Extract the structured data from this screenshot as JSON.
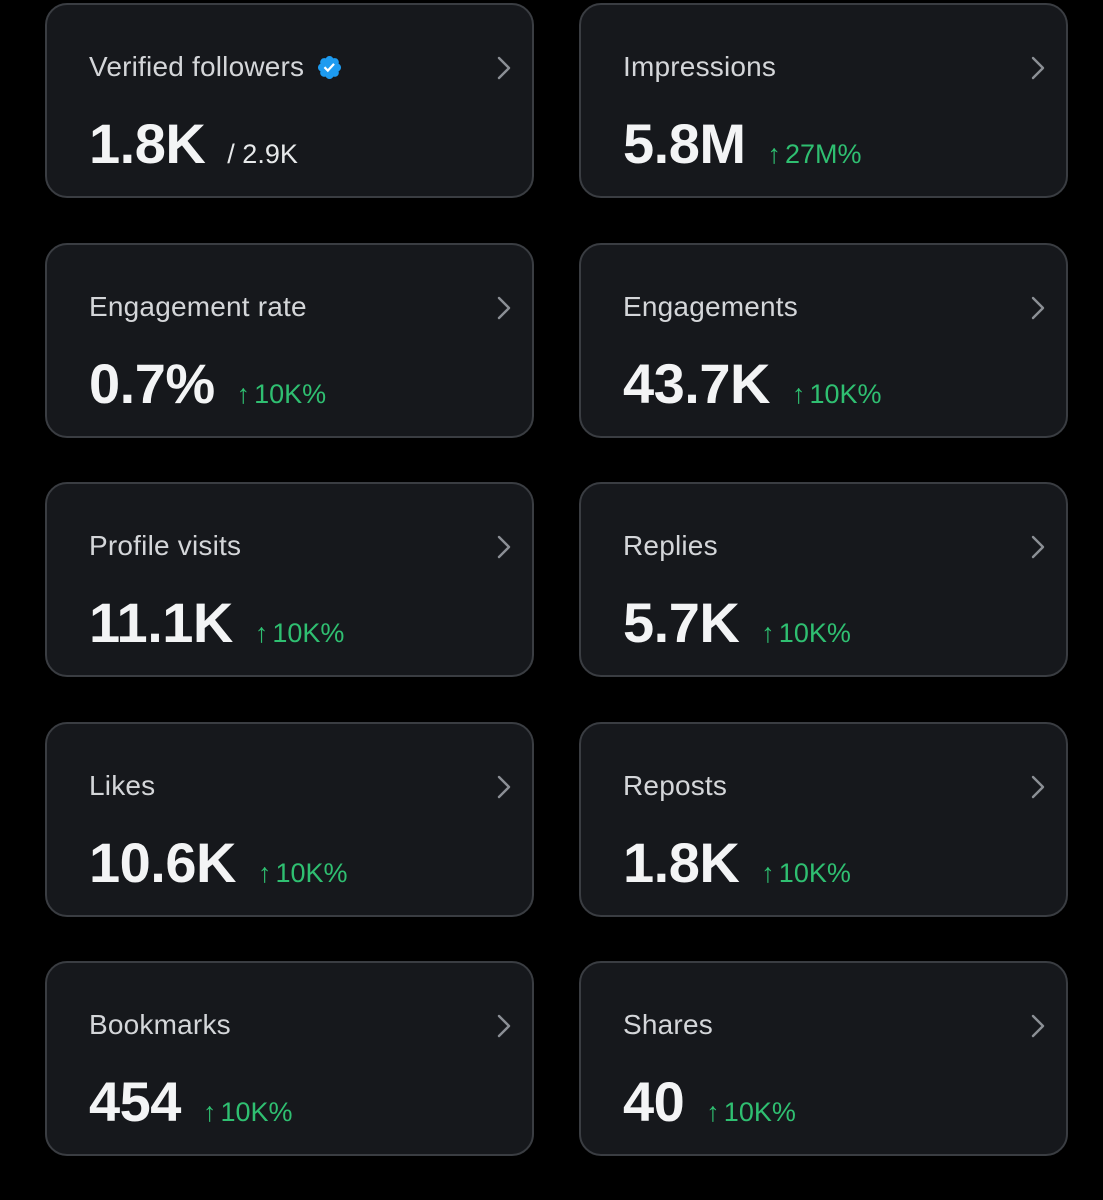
{
  "colors": {
    "background": "#000000",
    "card_background": "#16181c",
    "card_border": "#3a3d42",
    "positive_change": "#2fbf71",
    "verified_badge": "#1d9bf0"
  },
  "cards": [
    {
      "title": "Verified followers",
      "value": "1.8K",
      "secondary": "/ 2.9K",
      "has_verified_icon": true
    },
    {
      "title": "Impressions",
      "value": "5.8M",
      "change_arrow": "↑",
      "change": "27M%"
    },
    {
      "title": "Engagement rate",
      "value": "0.7%",
      "change_arrow": "↑",
      "change": "10K%"
    },
    {
      "title": "Engagements",
      "value": "43.7K",
      "change_arrow": "↑",
      "change": "10K%"
    },
    {
      "title": "Profile visits",
      "value": "11.1K",
      "change_arrow": "↑",
      "change": "10K%"
    },
    {
      "title": "Replies",
      "value": "5.7K",
      "change_arrow": "↑",
      "change": "10K%"
    },
    {
      "title": "Likes",
      "value": "10.6K",
      "change_arrow": "↑",
      "change": "10K%"
    },
    {
      "title": "Reposts",
      "value": "1.8K",
      "change_arrow": "↑",
      "change": "10K%"
    },
    {
      "title": "Bookmarks",
      "value": "454",
      "change_arrow": "↑",
      "change": "10K%"
    },
    {
      "title": "Shares",
      "value": "40",
      "change_arrow": "↑",
      "change": "10K%"
    }
  ]
}
